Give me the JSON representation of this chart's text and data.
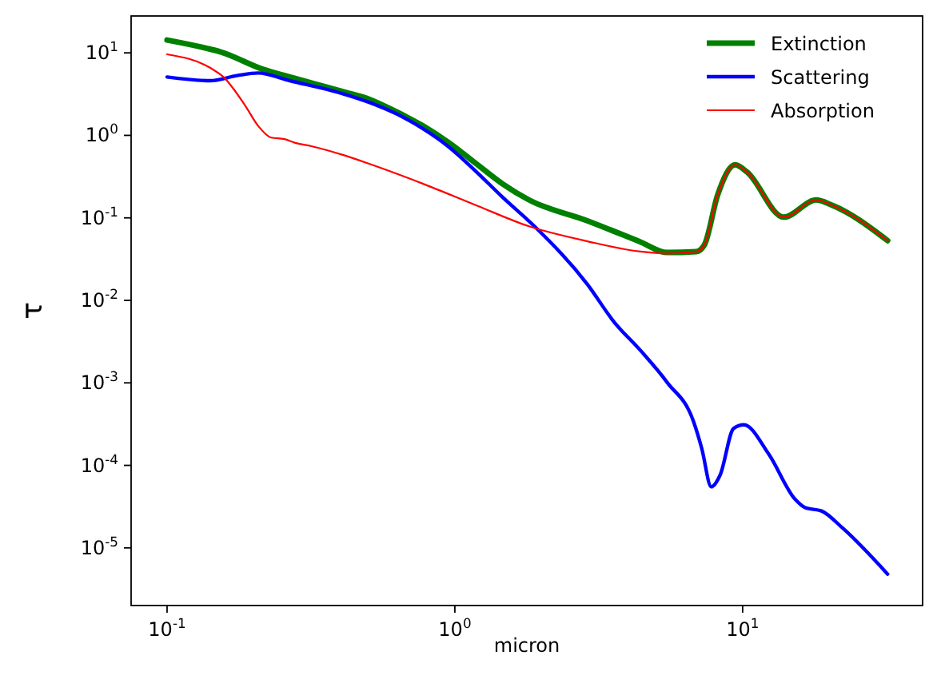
{
  "chart_data": {
    "type": "line",
    "xlabel": "micron",
    "ylabel": "τ",
    "log": "xy",
    "legend": "top right",
    "grid": false,
    "xlim": [
      0.075,
      42.2
    ],
    "ylim": [
      2e-06,
      28
    ],
    "xticks": [
      {
        "value": 0.1,
        "label": "10$^{-1}$"
      },
      {
        "value": 1,
        "label": "10$^{0}$"
      },
      {
        "value": 10,
        "label": "10$^{1}$"
      }
    ],
    "yticks": [
      {
        "value": 1e-05,
        "label": "10$^{-5}$"
      },
      {
        "value": 0.0001,
        "label": "10$^{-4}$"
      },
      {
        "value": 0.001,
        "label": "10$^{-3}$"
      },
      {
        "value": 0.01,
        "label": "10$^{-2}$"
      },
      {
        "value": 0.1,
        "label": "10$^{-1}$"
      },
      {
        "value": 1,
        "label": "10$^{0}$"
      },
      {
        "value": 10,
        "label": "10$^{1}$"
      }
    ],
    "series": [
      {
        "name": "Extinction",
        "color": "#008000",
        "x": [
          0.1,
          0.141,
          0.153,
          0.216,
          0.267,
          0.408,
          0.506,
          0.625,
          0.773,
          0.955,
          1.18,
          1.46,
          1.81,
          2.89,
          4.42,
          5.47,
          6.9,
          7.36,
          8.19,
          9.42,
          10.35,
          13.9,
          18.0,
          20.4,
          31.9
        ],
        "values": [
          14.3,
          11.1,
          10.3,
          6.3,
          5.1,
          3.4,
          2.73,
          1.94,
          1.31,
          0.81,
          0.46,
          0.26,
          0.165,
          0.092,
          0.051,
          0.038,
          0.039,
          0.047,
          0.19,
          0.44,
          0.36,
          0.102,
          0.165,
          0.143,
          0.053
        ]
      },
      {
        "name": "Scattering",
        "color": "#0000ff",
        "x": [
          0.1,
          0.141,
          0.175,
          0.207,
          0.267,
          0.408,
          0.506,
          0.625,
          0.773,
          0.955,
          1.18,
          1.46,
          1.89,
          2.89,
          3.57,
          4.42,
          5.47,
          6.76,
          7.21,
          7.78,
          8.36,
          9.3,
          10.1,
          12.3,
          15.2,
          16.5,
          18.8,
          22.2,
          31.9
        ],
        "values": [
          5.1,
          4.6,
          5.3,
          5.7,
          4.6,
          3.2,
          2.5,
          1.83,
          1.21,
          0.72,
          0.37,
          0.18,
          0.079,
          0.0156,
          0.0055,
          0.00246,
          0.00101,
          0.000335,
          0.00016,
          5.5e-05,
          7.7e-05,
          0.00028,
          0.00031,
          0.000138,
          3.9e-05,
          3.07e-05,
          2.8e-05,
          1.75e-05,
          4.8e-06
        ]
      },
      {
        "name": "Absorption",
        "color": "#ff0000",
        "x": [
          0.1,
          0.141,
          0.157,
          0.186,
          0.207,
          0.23,
          0.256,
          0.279,
          0.317,
          0.408,
          0.506,
          0.773,
          1.18,
          1.81,
          2.89,
          4.42,
          5.47,
          6.9,
          7.36,
          8.19,
          9.42,
          10.35,
          13.9,
          18.0,
          20.4,
          31.9
        ],
        "values": [
          9.6,
          6.6,
          5.1,
          2.35,
          1.31,
          0.94,
          0.9,
          0.81,
          0.74,
          0.58,
          0.45,
          0.26,
          0.143,
          0.079,
          0.052,
          0.039,
          0.037,
          0.039,
          0.047,
          0.19,
          0.44,
          0.36,
          0.102,
          0.165,
          0.143,
          0.053
        ]
      }
    ]
  }
}
